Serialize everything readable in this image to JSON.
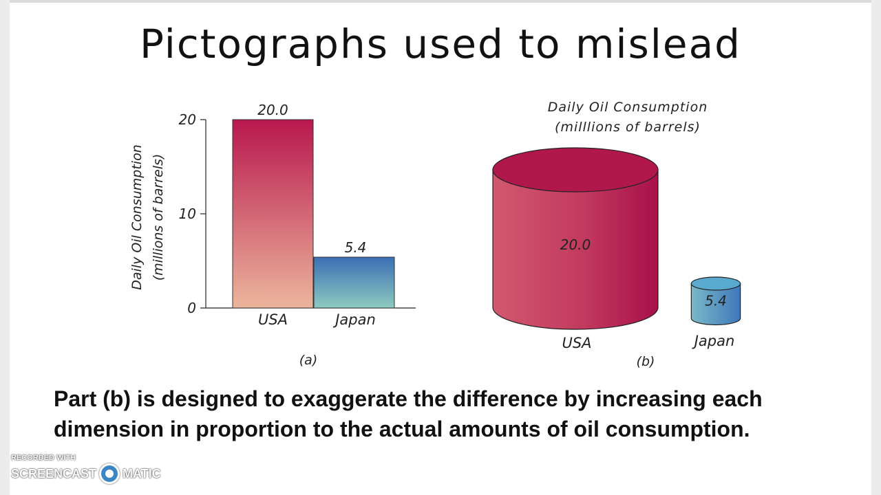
{
  "slide": {
    "title": "Pictographs used to mislead",
    "caption_line1": "Part (b) is designed to exaggerate the difference by increasing each",
    "caption_line2": "dimension in proportion to the actual amounts of oil consumption."
  },
  "chart_data": [
    {
      "type": "bar",
      "panel_label": "(a)",
      "categories": [
        "USA",
        "Japan"
      ],
      "values": [
        20.0,
        5.4
      ],
      "value_labels": [
        "20.0",
        "5.4"
      ],
      "ylabel_line1": "Daily Oil Consumption",
      "ylabel_line2": "(millions of barrels)",
      "yticks": [
        0,
        10,
        20
      ],
      "ytick_labels": [
        "0",
        "10",
        "20"
      ],
      "ylim": [
        0,
        20
      ],
      "grid": false,
      "colors": {
        "usa_top": "#b8184e",
        "usa_bottom": "#ecb59c",
        "japan_top": "#3b6fb6",
        "japan_bottom": "#8ccabe"
      }
    },
    {
      "type": "pictograph",
      "panel_label": "(b)",
      "title_line1": "Daily Oil Consumption",
      "title_line2": "(milllions of barrels)",
      "categories": [
        "USA",
        "Japan"
      ],
      "values": [
        20.0,
        5.4
      ],
      "value_labels": [
        "20.0",
        "5.4"
      ],
      "colors": {
        "usa_body": "#c23a5e",
        "usa_top": "#b0184c",
        "japan_body": "#4f8fc4",
        "japan_top": "#5aa9cf"
      }
    }
  ],
  "watermark": {
    "top": "RECORDED WITH",
    "left_word": "SCREENCAST",
    "right_word": "MATIC"
  }
}
